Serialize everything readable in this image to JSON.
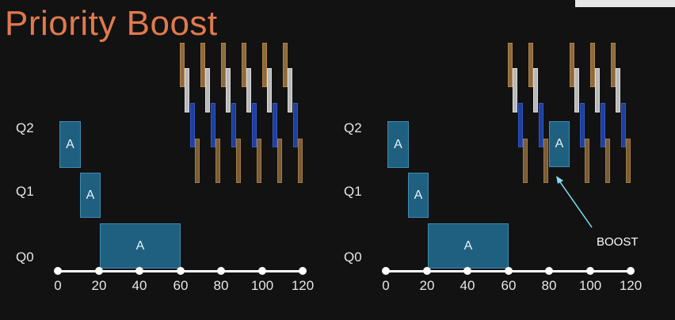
{
  "title": "Priority Boost",
  "queues": [
    "Q2",
    "Q1",
    "Q0"
  ],
  "axis": {
    "ticks": [
      "0",
      "20",
      "40",
      "60",
      "80",
      "100",
      "120"
    ]
  },
  "panels": [
    {
      "id": "left",
      "blocks": [
        {
          "label": "A",
          "queue": "Q2",
          "start": 0,
          "end": 10
        },
        {
          "label": "A",
          "queue": "Q1",
          "start": 10,
          "end": 20
        },
        {
          "label": "A",
          "queue": "Q0",
          "start": 20,
          "end": 60
        }
      ]
    },
    {
      "id": "right",
      "blocks": [
        {
          "label": "A",
          "queue": "Q2",
          "start": 0,
          "end": 10
        },
        {
          "label": "A",
          "queue": "Q1",
          "start": 10,
          "end": 20
        },
        {
          "label": "A",
          "queue": "Q0",
          "start": 20,
          "end": 60
        },
        {
          "label": "A",
          "queue": "Q2",
          "start": 80,
          "end": 90
        }
      ],
      "annotation": {
        "text": "BOOST"
      }
    }
  ],
  "colors": {
    "title": "#e07a4e",
    "job_a": "#1f5f80",
    "interactive_1": "#8f6a3a",
    "interactive_2": "#b8b8b8",
    "interactive_3": "#1c3fa0",
    "interactive_4": "#7a5c34",
    "annotation_arrow": "#7fe0f0"
  }
}
